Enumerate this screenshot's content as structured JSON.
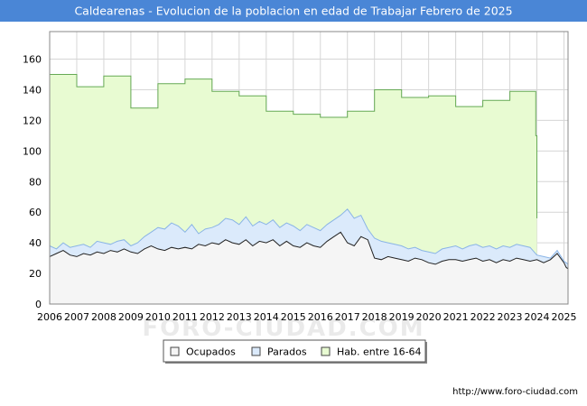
{
  "chart_data": {
    "type": "area",
    "title": "Caldearenas - Evolucion de la poblacion en edad de Trabajar Febrero de 2025",
    "xlabel": "",
    "ylabel": "",
    "xlim": [
      2006,
      2025.15
    ],
    "ylim": [
      0,
      178
    ],
    "x_ticks": [
      2006,
      2007,
      2008,
      2009,
      2010,
      2011,
      2012,
      2013,
      2014,
      2015,
      2016,
      2017,
      2018,
      2019,
      2020,
      2021,
      2022,
      2023,
      2024,
      2025
    ],
    "y_ticks": [
      0,
      20,
      40,
      60,
      80,
      100,
      120,
      140,
      160
    ],
    "grid": true,
    "legend_position": "bottom",
    "watermark": "FORO-CIUDAD.COM",
    "source": "http://www.foro-ciudad.com",
    "colors": {
      "hab": "#e8fbd2",
      "hab_line": "#66aa55",
      "parados": "#dbeafb",
      "parados_line": "#8ab4e6",
      "ocupados": "#f5f5f5",
      "ocupados_line": "#222222",
      "title_bg": "#4a86d6"
    },
    "series": [
      {
        "name": "Hab. entre 16-64",
        "type": "step",
        "points": [
          [
            2006,
            150
          ],
          [
            2007,
            142
          ],
          [
            2008,
            149
          ],
          [
            2009,
            128
          ],
          [
            2010,
            144
          ],
          [
            2011,
            147
          ],
          [
            2012,
            139
          ],
          [
            2013,
            136
          ],
          [
            2014,
            126
          ],
          [
            2015,
            124
          ],
          [
            2016,
            122
          ],
          [
            2017,
            126
          ],
          [
            2018,
            140
          ],
          [
            2019,
            135
          ],
          [
            2020,
            136
          ],
          [
            2021,
            129
          ],
          [
            2022,
            133
          ],
          [
            2023,
            139
          ],
          [
            2023.92,
            139
          ],
          [
            2023.96,
            110
          ],
          [
            2024,
            56
          ]
        ]
      },
      {
        "name": "Parados",
        "points": [
          [
            2006,
            38
          ],
          [
            2006.25,
            36
          ],
          [
            2006.5,
            40
          ],
          [
            2006.75,
            37
          ],
          [
            2007,
            38
          ],
          [
            2007.25,
            39
          ],
          [
            2007.5,
            37
          ],
          [
            2007.75,
            41
          ],
          [
            2008,
            40
          ],
          [
            2008.25,
            39
          ],
          [
            2008.5,
            41
          ],
          [
            2008.75,
            42
          ],
          [
            2009,
            38
          ],
          [
            2009.25,
            40
          ],
          [
            2009.5,
            44
          ],
          [
            2009.75,
            47
          ],
          [
            2010,
            50
          ],
          [
            2010.25,
            49
          ],
          [
            2010.5,
            53
          ],
          [
            2010.75,
            51
          ],
          [
            2011,
            47
          ],
          [
            2011.25,
            52
          ],
          [
            2011.5,
            46
          ],
          [
            2011.75,
            49
          ],
          [
            2012,
            50
          ],
          [
            2012.25,
            52
          ],
          [
            2012.5,
            56
          ],
          [
            2012.75,
            55
          ],
          [
            2013,
            52
          ],
          [
            2013.25,
            57
          ],
          [
            2013.5,
            51
          ],
          [
            2013.75,
            54
          ],
          [
            2014,
            52
          ],
          [
            2014.25,
            55
          ],
          [
            2014.5,
            50
          ],
          [
            2014.75,
            53
          ],
          [
            2015,
            51
          ],
          [
            2015.25,
            48
          ],
          [
            2015.5,
            52
          ],
          [
            2015.75,
            50
          ],
          [
            2016,
            48
          ],
          [
            2016.25,
            52
          ],
          [
            2016.5,
            55
          ],
          [
            2016.75,
            58
          ],
          [
            2017,
            62
          ],
          [
            2017.25,
            56
          ],
          [
            2017.5,
            58
          ],
          [
            2017.75,
            49
          ],
          [
            2018,
            43
          ],
          [
            2018.25,
            41
          ],
          [
            2018.5,
            40
          ],
          [
            2018.75,
            39
          ],
          [
            2019,
            38
          ],
          [
            2019.25,
            36
          ],
          [
            2019.5,
            37
          ],
          [
            2019.75,
            35
          ],
          [
            2020,
            34
          ],
          [
            2020.25,
            33
          ],
          [
            2020.5,
            36
          ],
          [
            2020.75,
            37
          ],
          [
            2021,
            38
          ],
          [
            2021.25,
            36
          ],
          [
            2021.5,
            38
          ],
          [
            2021.75,
            39
          ],
          [
            2022,
            37
          ],
          [
            2022.25,
            38
          ],
          [
            2022.5,
            36
          ],
          [
            2022.75,
            38
          ],
          [
            2023,
            37
          ],
          [
            2023.25,
            39
          ],
          [
            2023.5,
            38
          ],
          [
            2023.75,
            37
          ],
          [
            2024,
            32
          ],
          [
            2024.25,
            31
          ],
          [
            2024.5,
            30
          ],
          [
            2024.75,
            35
          ],
          [
            2025,
            28
          ],
          [
            2025.08,
            27
          ],
          [
            2025.15,
            26
          ]
        ]
      },
      {
        "name": "Ocupados",
        "points": [
          [
            2006,
            31
          ],
          [
            2006.25,
            33
          ],
          [
            2006.5,
            35
          ],
          [
            2006.75,
            32
          ],
          [
            2007,
            31
          ],
          [
            2007.25,
            33
          ],
          [
            2007.5,
            32
          ],
          [
            2007.75,
            34
          ],
          [
            2008,
            33
          ],
          [
            2008.25,
            35
          ],
          [
            2008.5,
            34
          ],
          [
            2008.75,
            36
          ],
          [
            2009,
            34
          ],
          [
            2009.25,
            33
          ],
          [
            2009.5,
            36
          ],
          [
            2009.75,
            38
          ],
          [
            2010,
            36
          ],
          [
            2010.25,
            35
          ],
          [
            2010.5,
            37
          ],
          [
            2010.75,
            36
          ],
          [
            2011,
            37
          ],
          [
            2011.25,
            36
          ],
          [
            2011.5,
            39
          ],
          [
            2011.75,
            38
          ],
          [
            2012,
            40
          ],
          [
            2012.25,
            39
          ],
          [
            2012.5,
            42
          ],
          [
            2012.75,
            40
          ],
          [
            2013,
            39
          ],
          [
            2013.25,
            42
          ],
          [
            2013.5,
            38
          ],
          [
            2013.75,
            41
          ],
          [
            2014,
            40
          ],
          [
            2014.25,
            42
          ],
          [
            2014.5,
            38
          ],
          [
            2014.75,
            41
          ],
          [
            2015,
            38
          ],
          [
            2015.25,
            37
          ],
          [
            2015.5,
            40
          ],
          [
            2015.75,
            38
          ],
          [
            2016,
            37
          ],
          [
            2016.25,
            41
          ],
          [
            2016.5,
            44
          ],
          [
            2016.75,
            47
          ],
          [
            2017,
            40
          ],
          [
            2017.25,
            38
          ],
          [
            2017.5,
            44
          ],
          [
            2017.75,
            42
          ],
          [
            2018,
            30
          ],
          [
            2018.25,
            29
          ],
          [
            2018.5,
            31
          ],
          [
            2018.75,
            30
          ],
          [
            2019,
            29
          ],
          [
            2019.25,
            28
          ],
          [
            2019.5,
            30
          ],
          [
            2019.75,
            29
          ],
          [
            2020,
            27
          ],
          [
            2020.25,
            26
          ],
          [
            2020.5,
            28
          ],
          [
            2020.75,
            29
          ],
          [
            2021,
            29
          ],
          [
            2021.25,
            28
          ],
          [
            2021.5,
            29
          ],
          [
            2021.75,
            30
          ],
          [
            2022,
            28
          ],
          [
            2022.25,
            29
          ],
          [
            2022.5,
            27
          ],
          [
            2022.75,
            29
          ],
          [
            2023,
            28
          ],
          [
            2023.25,
            30
          ],
          [
            2023.5,
            29
          ],
          [
            2023.75,
            28
          ],
          [
            2024,
            29
          ],
          [
            2024.25,
            27
          ],
          [
            2024.5,
            29
          ],
          [
            2024.75,
            33
          ],
          [
            2025,
            27
          ],
          [
            2025.08,
            24
          ],
          [
            2025.15,
            23
          ]
        ]
      }
    ]
  }
}
